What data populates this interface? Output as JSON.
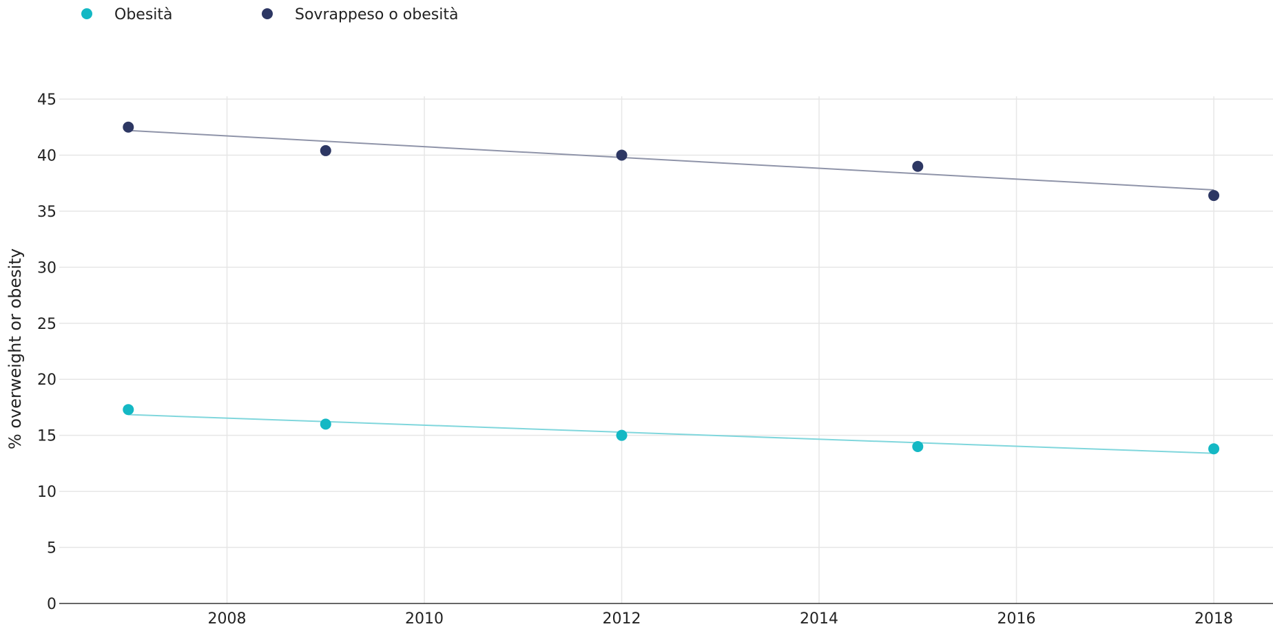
{
  "chart_data": {
    "type": "scatter",
    "title": "",
    "xlabel": "",
    "ylabel": "% overweight or obesity",
    "xlim": [
      2006.3,
      2018.6
    ],
    "ylim": [
      0,
      45
    ],
    "x_ticks": [
      2008,
      2010,
      2012,
      2014,
      2016,
      2018
    ],
    "y_ticks": [
      0,
      5,
      10,
      15,
      20,
      25,
      30,
      35,
      40,
      45
    ],
    "grid": true,
    "legend_position": "top-left",
    "series": [
      {
        "name": "Obesità",
        "color": "#14b8c4",
        "trend_color": "#7fd6dc",
        "points": [
          {
            "x": 2007,
            "y": 17.3
          },
          {
            "x": 2009,
            "y": 16.0
          },
          {
            "x": 2012,
            "y": 15.0
          },
          {
            "x": 2015,
            "y": 14.0
          },
          {
            "x": 2018,
            "y": 13.8
          }
        ],
        "trend": [
          {
            "x": 2007,
            "y": 16.85
          },
          {
            "x": 2018,
            "y": 13.4
          }
        ]
      },
      {
        "name": "Sovrappeso o obesità",
        "color": "#2d3763",
        "trend_color": "#8e93a8",
        "points": [
          {
            "x": 2007,
            "y": 42.5
          },
          {
            "x": 2009,
            "y": 40.4
          },
          {
            "x": 2012,
            "y": 40.0
          },
          {
            "x": 2015,
            "y": 39.0
          },
          {
            "x": 2018,
            "y": 36.4
          }
        ],
        "trend": [
          {
            "x": 2007,
            "y": 42.2
          },
          {
            "x": 2018,
            "y": 36.9
          }
        ]
      }
    ]
  }
}
